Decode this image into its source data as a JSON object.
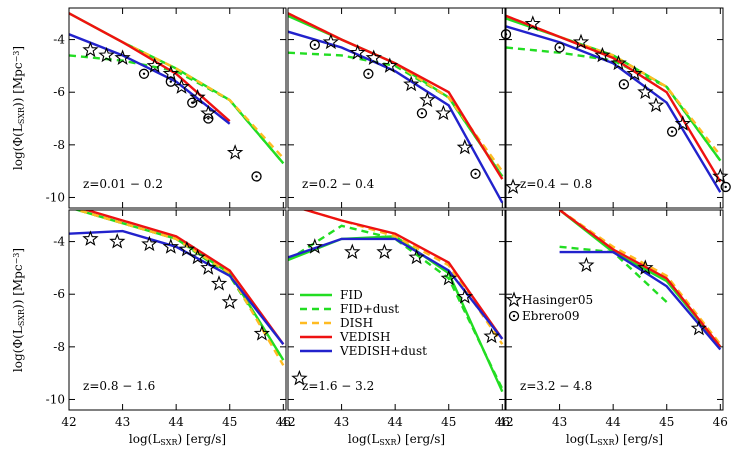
{
  "chart_data": [
    {
      "type": "line",
      "text": "z=0.01 − 0.2",
      "xlim": [
        42,
        46.05
      ],
      "ylim": [
        -10.4,
        -2.8
      ],
      "xticks": [
        42,
        43,
        44,
        45,
        46
      ],
      "yticks": [
        -4,
        -6,
        -8,
        -10
      ],
      "ytick_labels": true,
      "ylabel": [
        "log(Φ(L",
        "SXR",
        ")) [Mpc",
        "−3",
        "]"
      ],
      "x": [
        42,
        43,
        44,
        45,
        46
      ],
      "series": [
        {
          "color": "#22dd22",
          "dash": false,
          "values": [
            -3.0,
            -4.1,
            -5.1,
            -6.3,
            -8.7
          ]
        },
        {
          "color": "#22dd22",
          "dash": true,
          "values": [
            -4.6,
            -4.8,
            -5.2,
            -6.3,
            -8.7
          ]
        },
        {
          "color": "#ffbb22",
          "dash": true,
          "values": [
            -3.0,
            -4.1,
            -5.1,
            -6.3,
            -8.5
          ]
        },
        {
          "color": "#ee1111",
          "dash": false,
          "values": [
            -3.0,
            -4.1,
            -5.3,
            -7.1,
            null
          ]
        },
        {
          "color": "#2222cc",
          "dash": false,
          "values": [
            -3.8,
            -4.6,
            -5.6,
            -7.2,
            null
          ]
        }
      ],
      "points": [
        {
          "symbol": "star",
          "x": [
            42.4,
            42.7,
            43.0,
            43.6,
            43.9,
            44.1,
            44.4,
            44.6,
            45.1
          ],
          "values": [
            -4.4,
            -4.6,
            -4.7,
            -5.0,
            -5.3,
            -5.8,
            -6.2,
            -6.8,
            -8.3
          ]
        },
        {
          "symbol": "circle",
          "x": [
            43.4,
            43.9,
            44.3,
            44.6,
            45.5
          ],
          "values": [
            -5.3,
            -5.6,
            -6.4,
            -7.0,
            -9.2
          ]
        }
      ]
    },
    {
      "type": "line",
      "text": "z=0.2 − 0.4",
      "xlim": [
        42,
        46.05
      ],
      "ylim": [
        -10.4,
        -2.8
      ],
      "xticks": [
        42,
        43,
        44,
        45,
        46
      ],
      "yticks": [
        -4,
        -6,
        -8,
        -10
      ],
      "x": [
        42,
        43,
        44,
        45,
        46
      ],
      "series": [
        {
          "color": "#22dd22",
          "dash": false,
          "values": [
            -3.1,
            -4.0,
            -4.9,
            -6.2,
            -9.2
          ]
        },
        {
          "color": "#22dd22",
          "dash": true,
          "values": [
            -4.5,
            -4.6,
            -5.0,
            -6.2,
            -9.2
          ]
        },
        {
          "color": "#ffbb22",
          "dash": true,
          "values": [
            -3.0,
            -4.0,
            -4.9,
            -6.2,
            -9.0
          ]
        },
        {
          "color": "#ee1111",
          "dash": false,
          "values": [
            -3.0,
            -4.0,
            -4.9,
            -6.0,
            -9.3
          ]
        },
        {
          "color": "#2222cc",
          "dash": false,
          "values": [
            -3.7,
            -4.3,
            -5.2,
            -6.5,
            -10.2
          ]
        }
      ],
      "points": [
        {
          "symbol": "star",
          "x": [
            42.8,
            43.3,
            43.6,
            43.9,
            44.3,
            44.6,
            44.9,
            45.3,
            46.2
          ],
          "values": [
            -4.1,
            -4.5,
            -4.7,
            -5.0,
            -5.7,
            -6.3,
            -6.8,
            -8.1,
            -9.6
          ]
        },
        {
          "symbol": "circle",
          "x": [
            42.5,
            43.5,
            44.5,
            45.5
          ],
          "values": [
            -4.2,
            -5.3,
            -6.8,
            -9.1
          ]
        }
      ]
    },
    {
      "type": "line",
      "text": "z=0.4 − 0.8",
      "xlim": [
        42,
        46.05
      ],
      "ylim": [
        -10.4,
        -2.8
      ],
      "xticks": [
        42,
        43,
        44,
        45,
        46
      ],
      "yticks": [
        -4,
        -6,
        -8,
        -10
      ],
      "x": [
        42,
        43,
        44,
        45,
        46
      ],
      "series": [
        {
          "color": "#22dd22",
          "dash": false,
          "values": [
            -3.2,
            -3.9,
            -4.6,
            -5.8,
            -8.6
          ]
        },
        {
          "color": "#22dd22",
          "dash": true,
          "values": [
            -4.3,
            -4.5,
            -4.8,
            -5.8,
            -8.6
          ]
        },
        {
          "color": "#ffbb22",
          "dash": true,
          "values": [
            -3.1,
            -3.9,
            -4.6,
            -5.8,
            -8.4
          ]
        },
        {
          "color": "#ee1111",
          "dash": false,
          "values": [
            -3.1,
            -3.9,
            -4.7,
            -6.0,
            -9.4
          ]
        },
        {
          "color": "#2222cc",
          "dash": false,
          "values": [
            -3.5,
            -4.1,
            -4.9,
            -6.4,
            -9.8
          ]
        }
      ],
      "points": [
        {
          "symbol": "star",
          "x": [
            42.5,
            43.4,
            43.8,
            44.1,
            44.4,
            44.6,
            44.8,
            45.3,
            46.0
          ],
          "values": [
            -3.4,
            -4.1,
            -4.6,
            -4.9,
            -5.3,
            -6.0,
            -6.5,
            -7.2,
            -9.2
          ]
        },
        {
          "symbol": "circle",
          "x": [
            42.0,
            43.0,
            44.2,
            45.1,
            46.1
          ],
          "values": [
            -3.8,
            -4.3,
            -5.7,
            -7.5,
            -9.6
          ]
        }
      ]
    },
    {
      "type": "line",
      "text": "z=0.8 − 1.6",
      "xlim": [
        42,
        46.05
      ],
      "ylim": [
        -10.4,
        -2.8
      ],
      "xticks": [
        42,
        43,
        44,
        45,
        46
      ],
      "yticks": [
        -4,
        -6,
        -8,
        -10
      ],
      "ytick_labels": true,
      "xtick_labels": true,
      "ylabel": [
        "log(Φ(L",
        "SXR",
        ")) [Mpc",
        "−3",
        "]"
      ],
      "xlabel": [
        "log(L",
        "SXR",
        ") [erg/s]"
      ],
      "x": [
        42,
        43,
        44,
        45,
        46
      ],
      "series": [
        {
          "color": "#22dd22",
          "dash": false,
          "values": [
            -2.7,
            -3.3,
            -3.9,
            -5.2,
            -8.5
          ]
        },
        {
          "color": "#22dd22",
          "dash": true,
          "values": [
            -2.7,
            -3.3,
            -3.9,
            -5.3,
            -8.5
          ]
        },
        {
          "color": "#ffbb22",
          "dash": true,
          "values": [
            -2.7,
            -3.3,
            -3.9,
            -5.2,
            -8.7
          ]
        },
        {
          "color": "#ee1111",
          "dash": false,
          "values": [
            -2.6,
            -3.2,
            -3.8,
            -5.1,
            -7.9
          ]
        },
        {
          "color": "#2222cc",
          "dash": false,
          "values": [
            -3.7,
            -3.6,
            -4.2,
            -5.3,
            -7.9
          ]
        }
      ],
      "points": [
        {
          "symbol": "star",
          "x": [
            42.4,
            42.9,
            43.5,
            43.9,
            44.2,
            44.4,
            44.6,
            44.8,
            45.0,
            45.6,
            46.3
          ],
          "values": [
            -3.9,
            -4.0,
            -4.1,
            -4.2,
            -4.3,
            -4.6,
            -5.0,
            -5.6,
            -6.3,
            -7.5,
            -9.2
          ]
        }
      ]
    },
    {
      "type": "line",
      "text": "z=1.6 − 3.2",
      "xlim": [
        42,
        46.05
      ],
      "ylim": [
        -10.4,
        -2.8
      ],
      "xticks": [
        42,
        43,
        44,
        45,
        46
      ],
      "yticks": [
        -4,
        -6,
        -8,
        -10
      ],
      "xtick_labels": true,
      "xlabel": [
        "log(L",
        "SXR",
        ") [erg/s]"
      ],
      "legend": "lower left",
      "x": [
        42,
        43,
        44,
        45,
        46
      ],
      "series": [
        {
          "name": "FID",
          "color": "#22dd22",
          "dash": false,
          "values": [
            -4.7,
            -3.9,
            -3.8,
            -5.2,
            -9.7
          ]
        },
        {
          "name": "FID+dust",
          "color": "#22dd22",
          "dash": true,
          "values": [
            -4.7,
            -3.4,
            -3.9,
            -5.4,
            -9.6
          ]
        },
        {
          "name": "DISH",
          "color": "#ffbb22",
          "dash": true,
          "values": [
            -2.6,
            -3.2,
            -3.8,
            -4.9,
            -7.9
          ]
        },
        {
          "name": "VEDISH",
          "color": "#ee1111",
          "dash": false,
          "values": [
            -2.6,
            -3.2,
            -3.7,
            -4.8,
            -7.7
          ]
        },
        {
          "name": "VEDISH+dust",
          "color": "#2222cc",
          "dash": false,
          "values": [
            -4.6,
            -3.9,
            -3.9,
            -5.1,
            -7.7
          ]
        }
      ],
      "points": [
        {
          "symbol": "star",
          "x": [
            42.5,
            43.2,
            43.8,
            44.4,
            45.0,
            45.3,
            45.8
          ],
          "values": [
            -4.2,
            -4.4,
            -4.4,
            -4.6,
            -5.4,
            -6.1,
            -7.6
          ]
        }
      ]
    },
    {
      "type": "line",
      "text": "z=3.2 − 4.8",
      "xlim": [
        42,
        46.05
      ],
      "ylim": [
        -10.4,
        -2.8
      ],
      "xticks": [
        42,
        43,
        44,
        45,
        46
      ],
      "yticks": [
        -4,
        -6,
        -8,
        -10
      ],
      "xtick_labels": true,
      "xlabel": [
        "log(L",
        "SXR",
        ") [erg/s]"
      ],
      "legend": "center left",
      "x": [
        42,
        43,
        44,
        45,
        46
      ],
      "series": [
        {
          "color": "#22dd22",
          "dash": false,
          "values": [
            null,
            -2.8,
            -4.4,
            -5.5,
            -8.0
          ]
        },
        {
          "color": "#22dd22",
          "dash": true,
          "values": [
            null,
            -4.2,
            -4.4,
            -6.3,
            null
          ]
        },
        {
          "color": "#ffbb22",
          "dash": true,
          "values": [
            null,
            -2.8,
            -4.2,
            -5.3,
            -7.9
          ]
        },
        {
          "color": "#ee1111",
          "dash": false,
          "values": [
            null,
            -2.8,
            -4.3,
            -5.4,
            -8.0
          ]
        },
        {
          "color": "#2222cc",
          "dash": false,
          "values": [
            null,
            -4.4,
            -4.4,
            -5.7,
            -8.1
          ]
        }
      ],
      "points": [
        {
          "name": "Hasinger05",
          "symbol": "star",
          "x": [
            43.5,
            44.6,
            45.6
          ],
          "values": [
            -4.9,
            -5.0,
            -7.3
          ]
        },
        {
          "name": "Ebrero09",
          "symbol": "circle",
          "x": [],
          "values": []
        }
      ]
    }
  ]
}
